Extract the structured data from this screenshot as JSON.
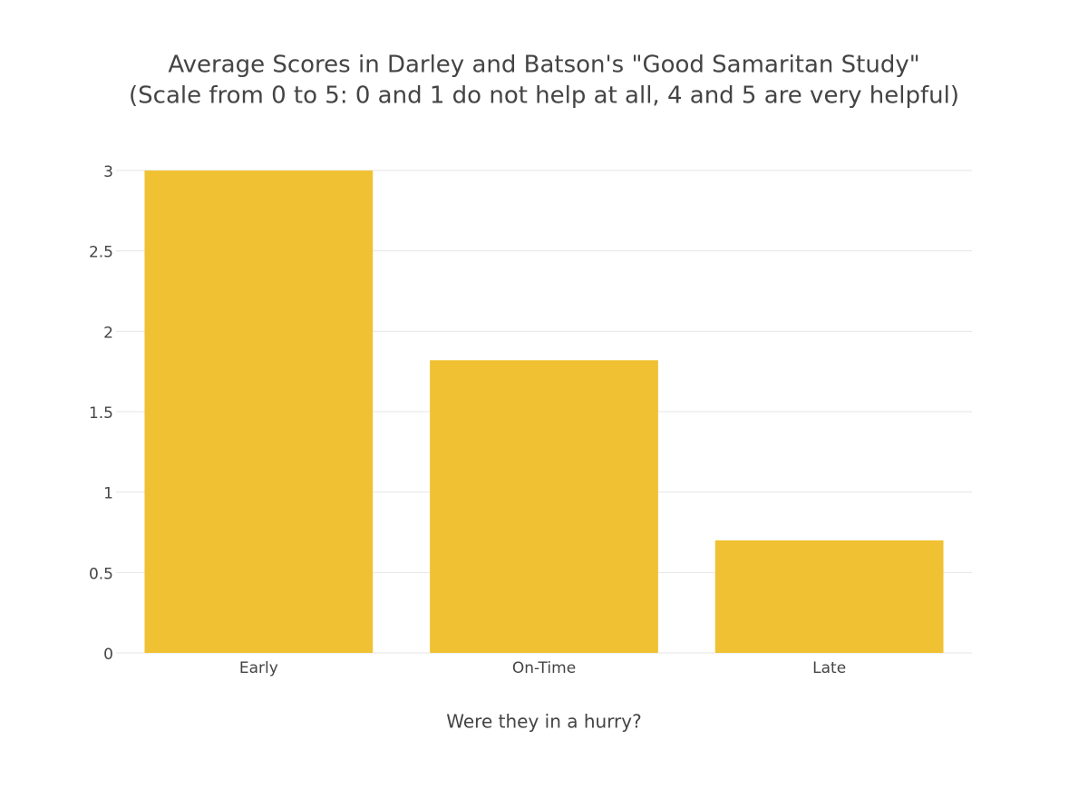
{
  "chart_data": {
    "type": "bar",
    "title": "Average Scores in Darley and Batson's \"Good Samaritan Study\"",
    "subtitle": "(Scale from 0 to 5: 0 and 1 do not help at all, 4 and 5 are very helpful)",
    "x_label": "Were they in a hurry?",
    "categories": [
      "Early",
      "On-Time",
      "Late"
    ],
    "values": [
      3,
      1.82,
      0.7
    ],
    "color": "#f0c132",
    "ylim": [
      0,
      3
    ],
    "yticks": [
      0,
      0.5,
      1,
      1.5,
      2,
      2.5,
      3
    ],
    "grid": true
  }
}
